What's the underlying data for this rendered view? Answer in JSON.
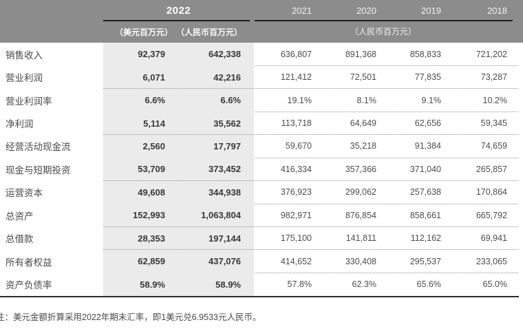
{
  "header": {
    "year_2022": "2022",
    "unit_usd": "（美元百万元）",
    "unit_rmb": "（人民币百万元）",
    "years": [
      "2021",
      "2020",
      "2019",
      "2018"
    ],
    "right_unit": "（人民币百万元）"
  },
  "table": {
    "rows": [
      {
        "label": "销售收入",
        "usd": "92,379",
        "rmb": "642,338",
        "y2021": "636,807",
        "y2020": "891,368",
        "y2019": "858,833",
        "y2018": "721,202"
      },
      {
        "label": "营业利润",
        "usd": "6,071",
        "rmb": "42,216",
        "y2021": "121,412",
        "y2020": "72,501",
        "y2019": "77,835",
        "y2018": "73,287"
      },
      {
        "label": "营业利润率",
        "usd": "6.6%",
        "rmb": "6.6%",
        "y2021": "19.1%",
        "y2020": "8.1%",
        "y2019": "9.1%",
        "y2018": "10.2%"
      },
      {
        "label": "净利润",
        "usd": "5,114",
        "rmb": "35,562",
        "y2021": "113,718",
        "y2020": "64,649",
        "y2019": "62,656",
        "y2018": "59,345"
      },
      {
        "label": "经营活动现金流",
        "usd": "2,560",
        "rmb": "17,797",
        "y2021": "59,670",
        "y2020": "35,218",
        "y2019": "91,384",
        "y2018": "74,659"
      },
      {
        "label": "现金与短期投资",
        "usd": "53,709",
        "rmb": "373,452",
        "y2021": "416,334",
        "y2020": "357,366",
        "y2019": "371,040",
        "y2018": "265,857"
      },
      {
        "label": "运营资本",
        "usd": "49,608",
        "rmb": "344,938",
        "y2021": "376,923",
        "y2020": "299,062",
        "y2019": "257,638",
        "y2018": "170,864"
      },
      {
        "label": "总资产",
        "usd": "152,993",
        "rmb": "1,063,804",
        "y2021": "982,971",
        "y2020": "876,854",
        "y2019": "858,661",
        "y2018": "665,792"
      },
      {
        "label": "总借款",
        "usd": "28,353",
        "rmb": "197,144",
        "y2021": "175,100",
        "y2020": "141,811",
        "y2019": "112,162",
        "y2018": "69,941"
      },
      {
        "label": "所有者权益",
        "usd": "62,859",
        "rmb": "437,076",
        "y2021": "414,652",
        "y2020": "330,408",
        "y2019": "295,537",
        "y2018": "233,065"
      },
      {
        "label": "资产负债率",
        "usd": "58.9%",
        "rmb": "58.9%",
        "y2021": "57.8%",
        "y2020": "62.3%",
        "y2019": "65.6%",
        "y2018": "65.0%"
      }
    ]
  },
  "footnote": "注：美元金额折算采用2022年期末汇率，即1美元兑6.9533元人民币。",
  "colors": {
    "header_bg": "#8c8c8c",
    "column_shade": "#ebebeb",
    "rule_dark": "#1d1d1d",
    "text_bold": "#383838",
    "text_regular": "#4d4d4d"
  }
}
